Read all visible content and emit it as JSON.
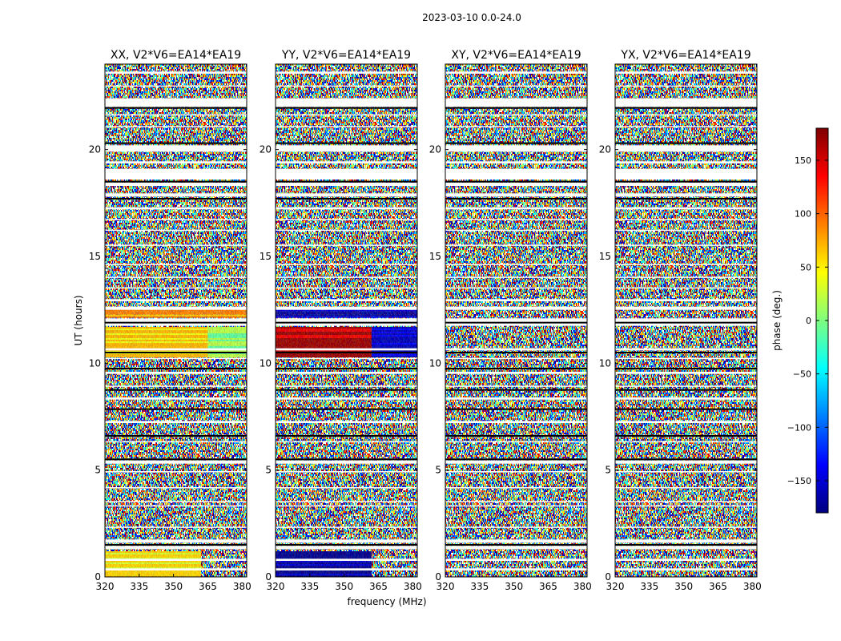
{
  "figure": {
    "suptitle": "2023-03-10 0.0-24.0",
    "xlabel": "frequency (MHz)",
    "ylabel": "UT (hours)"
  },
  "chart_data": {
    "type": "heatmap",
    "title": "2023-03-10 0.0-24.0",
    "xlabel": "frequency (MHz)",
    "ylabel": "UT (hours)",
    "xlim": [
      320,
      382
    ],
    "ylim": [
      0,
      24
    ],
    "xticks": [
      320,
      335,
      350,
      365,
      380
    ],
    "yticks": [
      0,
      5,
      10,
      15,
      20
    ],
    "panels": [
      {
        "title": "XX, V2*V6=EA14*EA19",
        "polarization": "XX"
      },
      {
        "title": "YY, V2*V6=EA14*EA19",
        "polarization": "YY"
      },
      {
        "title": "XY, V2*V6=EA14*EA19",
        "polarization": "XY"
      },
      {
        "title": "YX, V2*V6=EA14*EA19",
        "polarization": "YX"
      }
    ],
    "colorbar": {
      "label": "phase (deg.)",
      "range": [
        -180,
        180
      ],
      "ticks": [
        -150,
        -100,
        -50,
        0,
        50,
        100,
        150
      ],
      "colormap": "jet",
      "colors": [
        "#00007f",
        "#0000ff",
        "#007fff",
        "#00ffff",
        "#7fff7f",
        "#ffff00",
        "#ff7f00",
        "#ff0000",
        "#7f0000"
      ]
    },
    "flagged_bands_hours": [
      [
        0.3,
        0.4
      ],
      [
        0.75,
        0.85
      ],
      [
        1.3,
        1.45
      ],
      [
        1.6,
        1.75
      ],
      [
        2.3,
        2.35
      ],
      [
        3.3,
        3.35
      ],
      [
        3.5,
        3.55
      ],
      [
        4.15,
        4.2
      ],
      [
        4.9,
        4.95
      ],
      [
        5.3,
        5.45
      ],
      [
        6.3,
        6.35
      ],
      [
        7.2,
        7.3
      ],
      [
        8.3,
        8.4
      ],
      [
        8.9,
        8.95
      ],
      [
        9.5,
        9.6
      ],
      [
        10.2,
        10.25
      ],
      [
        10.6,
        10.7
      ],
      [
        11.75,
        12.1
      ],
      [
        12.5,
        12.65
      ],
      [
        12.9,
        13.0
      ],
      [
        13.5,
        13.55
      ],
      [
        14.0,
        14.05
      ],
      [
        14.6,
        14.65
      ],
      [
        15.5,
        15.55
      ],
      [
        16.2,
        16.25
      ],
      [
        16.7,
        16.75
      ],
      [
        17.2,
        17.3
      ],
      [
        17.8,
        17.95
      ],
      [
        18.3,
        18.45
      ],
      [
        18.6,
        19.1
      ],
      [
        19.35,
        19.45
      ],
      [
        19.9,
        20.2
      ],
      [
        21.05,
        21.1
      ],
      [
        21.6,
        21.65
      ],
      [
        22.0,
        22.4
      ],
      [
        22.95,
        23.0
      ],
      [
        23.55,
        23.65
      ]
    ],
    "black_lines_hours": [
      1.5,
      5.5,
      6.6,
      7.85,
      8.75,
      9.75,
      10.5,
      11.9,
      17.7,
      18.5,
      20.3,
      21.95
    ],
    "coherent_regions": [
      {
        "panel": "XX",
        "t_range": [
          10.3,
          11.7
        ],
        "f_range": [
          320,
          365
        ],
        "phase_deg": 70,
        "note": "orange/yellow"
      },
      {
        "panel": "XX",
        "t_range": [
          10.3,
          11.7
        ],
        "f_range": [
          365,
          382
        ],
        "phase_deg": 20,
        "note": "green/yellow"
      },
      {
        "panel": "XX",
        "t_range": [
          12.2,
          12.5
        ],
        "f_range": [
          320,
          382
        ],
        "phase_deg": 90,
        "note": "orange"
      },
      {
        "panel": "XX",
        "t_range": [
          0.0,
          1.2
        ],
        "f_range": [
          320,
          362
        ],
        "phase_deg": 60,
        "note": "yellow/orange"
      },
      {
        "panel": "YY",
        "t_range": [
          10.3,
          11.7
        ],
        "f_range": [
          320,
          362
        ],
        "phase_deg": 170,
        "note": "dark red"
      },
      {
        "panel": "YY",
        "t_range": [
          10.3,
          11.7
        ],
        "f_range": [
          362,
          382
        ],
        "phase_deg": -160,
        "note": "dark blue"
      },
      {
        "panel": "YY",
        "t_range": [
          12.2,
          12.5
        ],
        "f_range": [
          320,
          382
        ],
        "phase_deg": -170,
        "note": "blue"
      },
      {
        "panel": "YY",
        "t_range": [
          0.0,
          1.2
        ],
        "f_range": [
          320,
          362
        ],
        "phase_deg": -175,
        "note": "blue/dark red"
      }
    ]
  }
}
